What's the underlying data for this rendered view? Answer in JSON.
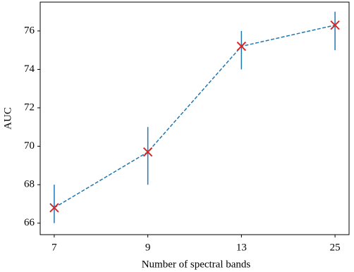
{
  "chart_data": {
    "type": "errorbar-line",
    "x_label": "Number of spectral bands",
    "y_label": "AUC",
    "categories": [
      "7",
      "9",
      "13",
      "25"
    ],
    "values": [
      66.8,
      69.7,
      75.2,
      76.3
    ],
    "lower": [
      66,
      68,
      74,
      75
    ],
    "upper": [
      68,
      71,
      76,
      77
    ],
    "line_color": "#1f77b4",
    "marker_color": "#d62728",
    "ylim": [
      65.4,
      77.5
    ],
    "yticks": [
      66,
      68,
      70,
      72,
      74,
      76
    ]
  }
}
